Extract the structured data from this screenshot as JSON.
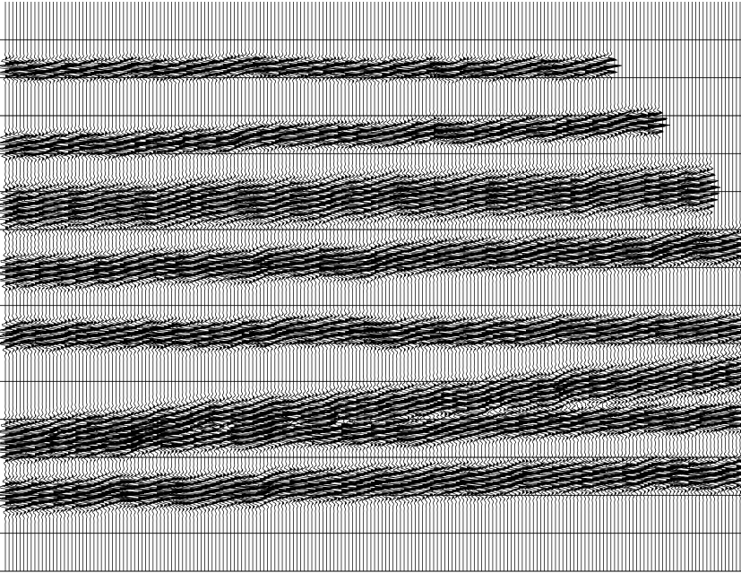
{
  "chart_data": {
    "type": "seismic-wiggle",
    "title": "",
    "xlabel": "",
    "ylabel": "",
    "grid": true,
    "trace_count": 200,
    "timing_line_count": 15,
    "colors": {
      "background": "#ffffff",
      "trace": "#000000",
      "fill": "#000000",
      "timing_line": "#000000"
    },
    "events": [
      {
        "name": "event-1",
        "start_time": 1.75,
        "end_time": 1.75,
        "thickness": 0.25,
        "trace_end": 165,
        "amplitude": 1.0
      },
      {
        "name": "event-2",
        "start_time": 3.8,
        "end_time": 3.15,
        "thickness": 0.3,
        "trace_end": 178,
        "amplitude": 1.0
      },
      {
        "name": "event-3",
        "start_time": 5.45,
        "end_time": 4.9,
        "thickness": 0.55,
        "trace_end": 192,
        "amplitude": 0.9
      },
      {
        "name": "event-4",
        "start_time": 7.1,
        "end_time": 6.5,
        "thickness": 0.4,
        "trace_end": 200,
        "amplitude": 1.0
      },
      {
        "name": "event-5",
        "start_time": 8.8,
        "end_time": 8.6,
        "thickness": 0.35,
        "trace_end": 200,
        "amplitude": 1.0
      },
      {
        "name": "event-6",
        "start_time": 11.5,
        "end_time": 9.8,
        "thickness": 0.45,
        "trace_end": 200,
        "amplitude": 0.9
      },
      {
        "name": "event-7",
        "start_time": 11.7,
        "end_time": 10.9,
        "thickness": 0.35,
        "trace_end": 200,
        "amplitude": 1.0
      },
      {
        "name": "event-8",
        "start_time": 13.0,
        "end_time": 12.4,
        "thickness": 0.4,
        "trace_end": 200,
        "amplitude": 1.0
      }
    ]
  }
}
